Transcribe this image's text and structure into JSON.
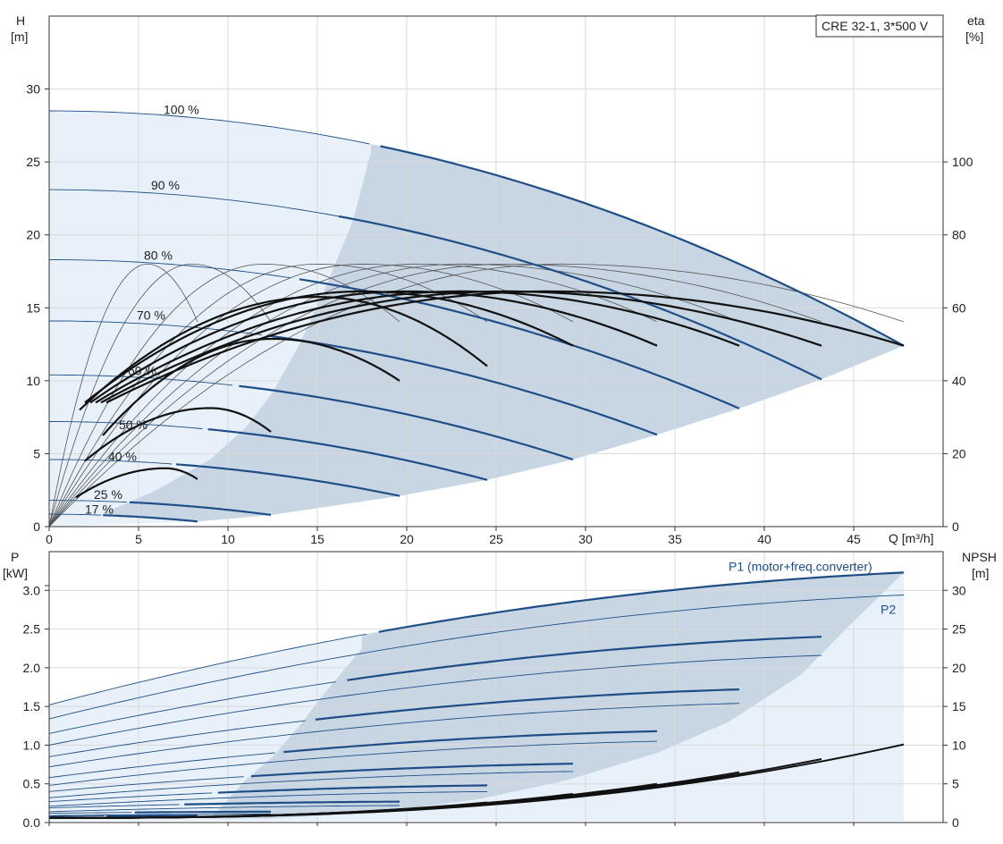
{
  "colors": {
    "curve_blue": "#1f4e87",
    "curve_thin": "#1f4e87",
    "eff_black": "#111111",
    "region_dark": "#c8d6e4",
    "region_light": "#e8f1fa",
    "grid": "#d9d9d9"
  },
  "chart_data": [
    {
      "type": "line",
      "panel": "head",
      "title": "",
      "legend_box": "CRE 32-1, 3*500 V",
      "xlabel": "Q [m³/h]",
      "ylabel_left": [
        "H",
        "[m]"
      ],
      "ylabel_right": [
        "eta",
        "[%]"
      ],
      "xlim": [
        0,
        50
      ],
      "ylim": [
        0,
        35
      ],
      "ylim_right": [
        0,
        140
      ],
      "x_ticks": [
        0,
        5,
        10,
        15,
        20,
        25,
        30,
        35,
        40,
        45
      ],
      "y_ticks": [
        0,
        5,
        10,
        15,
        20,
        25,
        30
      ],
      "y_ticks_right": [
        0,
        20,
        40,
        60,
        80,
        100
      ],
      "grid": true,
      "speed_curves": [
        {
          "name": "100 %",
          "label_at": [
            6.4,
            28.6
          ],
          "shutoff": 28.5,
          "qmax": 47.8,
          "hend": 12.4,
          "qmin": 3.2
        },
        {
          "name": "90 %",
          "label_at": [
            5.7,
            23.4
          ],
          "shutoff": 23.1,
          "qmax": 43.2,
          "hend": 10.1,
          "qmin": 2.9
        },
        {
          "name": "80 %",
          "label_at": [
            5.3,
            18.6
          ],
          "shutoff": 18.3,
          "qmax": 38.6,
          "hend": 8.1,
          "qmin": 2.6
        },
        {
          "name": "70 %",
          "label_at": [
            4.9,
            14.5
          ],
          "shutoff": 14.1,
          "qmax": 34.0,
          "hend": 6.3,
          "qmin": 2.3
        },
        {
          "name": "60 %",
          "label_at": [
            4.4,
            10.7
          ],
          "shutoff": 10.4,
          "qmax": 29.3,
          "hend": 4.6,
          "qmin": 2.0
        },
        {
          "name": "50 %",
          "label_at": [
            3.9,
            7.0
          ],
          "shutoff": 7.2,
          "qmax": 24.5,
          "hend": 3.2,
          "qmin": 1.7
        },
        {
          "name": "40 %",
          "label_at": [
            3.3,
            4.8
          ],
          "shutoff": 4.6,
          "qmax": 19.6,
          "hend": 2.1,
          "qmin": 1.3
        },
        {
          "name": "25 %",
          "label_at": [
            2.5,
            2.2
          ],
          "shutoff": 1.8,
          "qmax": 12.4,
          "hend": 0.8,
          "qmin": 1.0
        },
        {
          "name": "17 %",
          "label_at": [
            2.0,
            1.2
          ],
          "shutoff": 0.85,
          "qmax": 8.3,
          "hend": 0.35,
          "qmin": 0.7
        }
      ],
      "efficiency_curves": [
        {
          "q0": 3.2,
          "q1": 47.8,
          "peak_q": 28.0,
          "peak_eta": 64.5,
          "start_eta": 34.0,
          "end_eta": 49.6
        },
        {
          "q0": 2.9,
          "q1": 43.2,
          "peak_q": 25.5,
          "peak_eta": 64.5,
          "start_eta": 34.0,
          "end_eta": 49.6
        },
        {
          "q0": 2.6,
          "q1": 38.6,
          "peak_q": 23.0,
          "peak_eta": 64.5,
          "start_eta": 34.0,
          "end_eta": 49.6
        },
        {
          "q0": 2.3,
          "q1": 34.0,
          "peak_q": 20.0,
          "peak_eta": 64.5,
          "start_eta": 34.0,
          "end_eta": 49.6
        },
        {
          "q0": 2.0,
          "q1": 29.3,
          "peak_q": 17.5,
          "peak_eta": 64.5,
          "start_eta": 34.0,
          "end_eta": 49.6
        },
        {
          "q0": 1.7,
          "q1": 24.5,
          "peak_q": 15.0,
          "peak_eta": 63.0,
          "start_eta": 32.0,
          "end_eta": 44.0
        },
        {
          "q0": 3.0,
          "q1": 19.6,
          "peak_q": 12.5,
          "peak_eta": 51.5,
          "start_eta": 25.0,
          "end_eta": 40.0
        },
        {
          "q0": 2.0,
          "q1": 12.4,
          "peak_q": 9.0,
          "peak_eta": 32.5,
          "start_eta": 18.0,
          "end_eta": 26.0
        },
        {
          "q0": 1.5,
          "q1": 8.3,
          "peak_q": 6.5,
          "peak_eta": 16.0,
          "start_eta": 8.0,
          "end_eta": 13.0
        }
      ],
      "thin_eta_arcs": [
        {
          "q0": 0,
          "q1": 8.3,
          "peak_q": 5.5,
          "peak_eta": 72
        },
        {
          "q0": 0,
          "q1": 12.4,
          "peak_q": 8.0,
          "peak_eta": 72
        },
        {
          "q0": 0,
          "q1": 19.6,
          "peak_q": 12.0,
          "peak_eta": 72
        },
        {
          "q0": 0,
          "q1": 24.5,
          "peak_q": 15.0,
          "peak_eta": 72
        },
        {
          "q0": 0,
          "q1": 29.3,
          "peak_q": 17.5,
          "peak_eta": 72
        },
        {
          "q0": 0,
          "q1": 34.0,
          "peak_q": 20.5,
          "peak_eta": 72
        },
        {
          "q0": 0,
          "q1": 38.6,
          "peak_q": 23.0,
          "peak_eta": 72
        },
        {
          "q0": 0,
          "q1": 43.2,
          "peak_q": 25.5,
          "peak_eta": 72
        },
        {
          "q0": 0,
          "q1": 47.8,
          "peak_q": 28.5,
          "peak_eta": 72
        }
      ]
    },
    {
      "type": "line",
      "panel": "power",
      "xlim": [
        0,
        50
      ],
      "ylim": [
        0,
        3.5
      ],
      "ylim_right": [
        0,
        35
      ],
      "ylabel_left": [
        "P",
        "[kW]"
      ],
      "ylabel_right": [
        "NPSH",
        "[m]"
      ],
      "y_ticks": [
        0.0,
        0.5,
        1.0,
        1.5,
        2.0,
        2.5,
        3.0
      ],
      "y_tick_labels": [
        "0.0",
        "0.5",
        "1.0",
        "1.5",
        "2.0",
        "2.5",
        "3.0"
      ],
      "y_ticks_right": [
        0,
        5,
        10,
        15,
        20,
        25,
        30
      ],
      "grid": true,
      "series_labels": [
        {
          "name": "P1 (motor+freq.converter)",
          "at": [
            38.0,
            3.25
          ]
        },
        {
          "name": "P2",
          "at": [
            46.5,
            2.7
          ]
        }
      ],
      "p1_curves": [
        {
          "qmax": 47.8,
          "p0": 1.52,
          "pend": 3.23
        },
        {
          "qmax": 43.2,
          "p0": 1.15,
          "pend": 2.4
        },
        {
          "qmax": 38.6,
          "p0": 0.85,
          "pend": 1.72
        },
        {
          "qmax": 34.0,
          "p0": 0.58,
          "pend": 1.18
        },
        {
          "qmax": 29.3,
          "p0": 0.4,
          "pend": 0.76
        },
        {
          "qmax": 24.5,
          "p0": 0.27,
          "pend": 0.48
        },
        {
          "qmax": 19.6,
          "p0": 0.19,
          "pend": 0.27
        },
        {
          "qmax": 12.4,
          "p0": 0.12,
          "pend": 0.14
        },
        {
          "qmax": 8.3,
          "p0": 0.08,
          "pend": 0.09
        }
      ],
      "p2_curves": [
        {
          "qmax": 47.8,
          "p0": 1.34,
          "pend": 2.94
        },
        {
          "qmax": 43.2,
          "p0": 1.0,
          "pend": 2.16
        },
        {
          "qmax": 38.6,
          "p0": 0.72,
          "pend": 1.54
        },
        {
          "qmax": 34.0,
          "p0": 0.48,
          "pend": 1.05
        },
        {
          "qmax": 29.3,
          "p0": 0.32,
          "pend": 0.66
        },
        {
          "qmax": 24.5,
          "p0": 0.21,
          "pend": 0.4
        },
        {
          "qmax": 19.6,
          "p0": 0.14,
          "pend": 0.22
        },
        {
          "qmax": 12.4,
          "p0": 0.09,
          "pend": 0.11
        },
        {
          "qmax": 8.3,
          "p0": 0.06,
          "pend": 0.07
        }
      ],
      "npsh_curves": [
        {
          "qmax": 47.8,
          "npsh_end": 10.1
        },
        {
          "qmax": 43.2,
          "npsh_end": 8.2
        },
        {
          "qmax": 38.6,
          "npsh_end": 6.5
        },
        {
          "qmax": 34.0,
          "npsh_end": 5.0
        },
        {
          "qmax": 29.3,
          "npsh_end": 3.7
        },
        {
          "qmax": 24.5,
          "npsh_end": 2.6
        },
        {
          "qmax": 19.6,
          "npsh_end": 1.7
        },
        {
          "qmax": 12.4,
          "npsh_end": 1.0
        }
      ]
    }
  ]
}
